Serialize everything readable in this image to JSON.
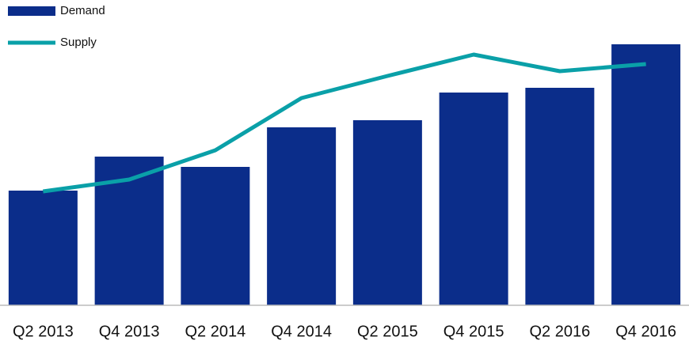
{
  "chart_data": {
    "type": "bar",
    "categories": [
      "Q2 2013",
      "Q4 2013",
      "Q2 2014",
      "Q4 2014",
      "Q2 2015",
      "Q4 2015",
      "Q2 2016",
      "Q4 2016"
    ],
    "series": [
      {
        "name": "Demand",
        "type": "bar",
        "color": "#0b2d8a",
        "values": [
          145,
          188,
          175,
          225,
          234,
          269,
          275,
          330
        ]
      },
      {
        "name": "Supply",
        "type": "line",
        "color": "#0aa0a8",
        "values": [
          144,
          159,
          196,
          262,
          290,
          317,
          296,
          305
        ]
      }
    ],
    "ylim": [
      0,
      386
    ],
    "grid": false
  }
}
